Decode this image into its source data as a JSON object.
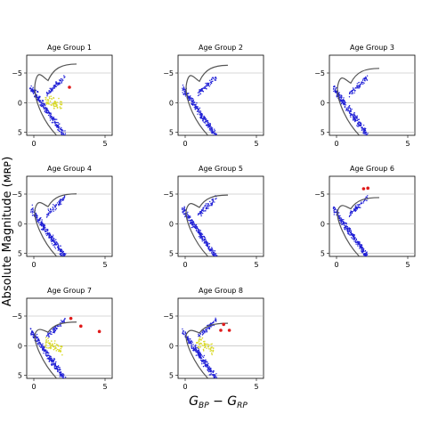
{
  "chart_data": {
    "type": "scatter",
    "layout": "grid-3x3",
    "ylabel": "Absolute Magnitude (M_RP)",
    "ylabel_visible": "Absolute Magnitude (ᴍʀᴘ)",
    "xlabel": "G_BP − G_RP",
    "xlabel_parts": {
      "g1": "G",
      "s1": "BP",
      "minus": " − ",
      "g2": "G",
      "s2": "RP"
    },
    "xlim": [
      -0.5,
      5.5
    ],
    "ylim": [
      5.5,
      -8
    ],
    "xticks": [
      0,
      5
    ],
    "yticks": [
      -5,
      0,
      5
    ],
    "ytick_labels": [
      "−5",
      "0",
      "5"
    ],
    "xtick_labels": [
      "0",
      "5"
    ],
    "grid": "horizontal lines at y = -5, 0, 5",
    "colors": {
      "background_stars": "#1f1fd6",
      "highlight_stars": "#d9d929",
      "giants": "#e01b1b",
      "isochrone": "#555555"
    },
    "panels": [
      {
        "title": "Age Group 1",
        "red_points": [
          [
            2.5,
            -2.6
          ]
        ],
        "yellow": true,
        "isochrone_turnoff": -6.2
      },
      {
        "title": "Age Group 2",
        "red_points": [],
        "yellow": false,
        "isochrone_turnoff": -6.0
      },
      {
        "title": "Age Group 3",
        "red_points": [],
        "yellow": false,
        "isochrone_turnoff": -5.5
      },
      {
        "title": "Age Group 4",
        "red_points": [],
        "yellow": false,
        "isochrone_turnoff": -4.8
      },
      {
        "title": "Age Group 5",
        "red_points": [],
        "yellow": false,
        "isochrone_turnoff": -4.6
      },
      {
        "title": "Age Group 6",
        "red_points": [
          [
            1.9,
            -5.9
          ],
          [
            2.2,
            -6.0
          ]
        ],
        "yellow": false,
        "isochrone_turnoff": -4.2
      },
      {
        "title": "Age Group 7",
        "red_points": [
          [
            2.6,
            -4.6
          ],
          [
            3.3,
            -3.3
          ],
          [
            4.6,
            -2.4
          ]
        ],
        "yellow": true,
        "isochrone_turnoff": -3.8
      },
      {
        "title": "Age Group 8",
        "red_points": [
          [
            2.7,
            -3.6
          ],
          [
            2.5,
            -2.6
          ],
          [
            3.1,
            -2.6
          ]
        ],
        "yellow": true,
        "isochrone_turnoff": -3.6
      }
    ]
  }
}
